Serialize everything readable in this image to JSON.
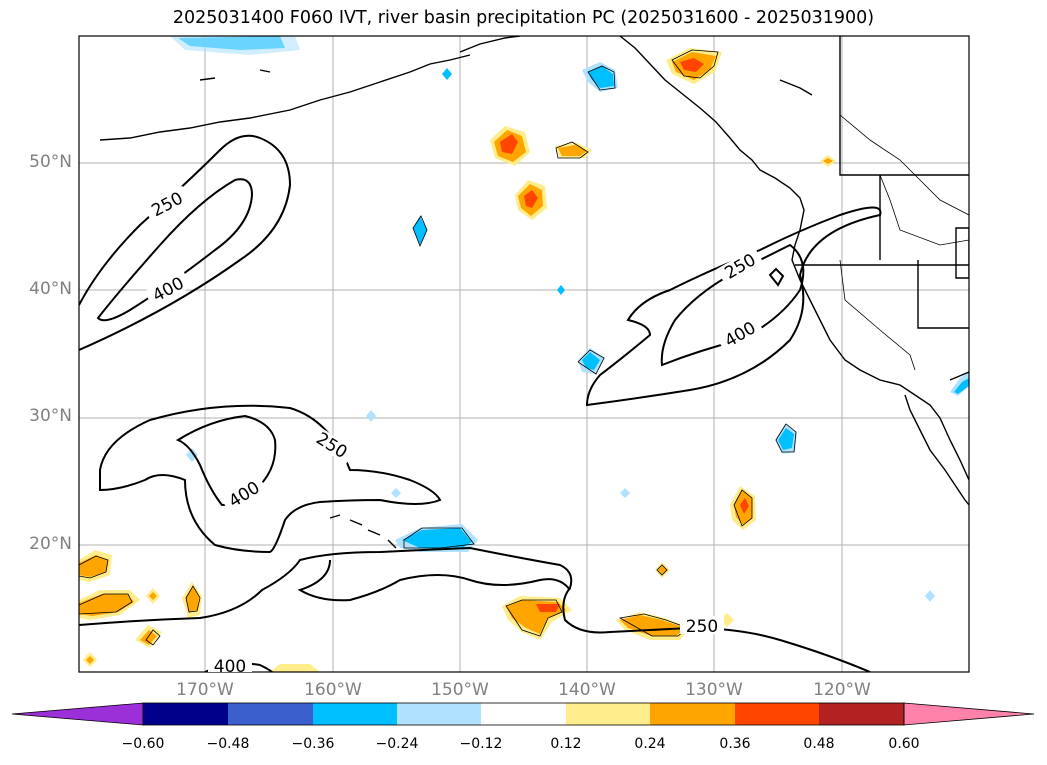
{
  "title": "2025031400 F060 IVT, river basin precipitation PC (2025031600 - 2025031900)",
  "map": {
    "projection": "PlateCarree",
    "lon_range": [
      -180,
      -110
    ],
    "lat_range": [
      10,
      60
    ],
    "lat_labels": [
      "50°N",
      "40°N",
      "30°N",
      "20°N"
    ],
    "lon_labels": [
      "170°W",
      "160°W",
      "150°W",
      "140°W",
      "130°W",
      "120°W"
    ],
    "ivt_contour_labels": [
      "250",
      "400",
      "250",
      "400",
      "250",
      "400",
      "400",
      "250"
    ],
    "ivt_contour_levels": [
      250,
      400
    ]
  },
  "colorbar": {
    "ticks": [
      "−0.60",
      "−0.48",
      "−0.36",
      "−0.24",
      "−0.12",
      "0.12",
      "0.24",
      "0.36",
      "0.48",
      "0.60"
    ],
    "colors": {
      "under": "#9b30d9",
      "b1": "#00008b",
      "b2": "#3a5fcd",
      "b3": "#00bfff",
      "b4": "#b0e2ff",
      "b5": "#ffffff",
      "b6": "#ffec8b",
      "b7": "#ffa500",
      "b8": "#ff4500",
      "b9": "#b22222",
      "over": "#ff82ab"
    }
  }
}
